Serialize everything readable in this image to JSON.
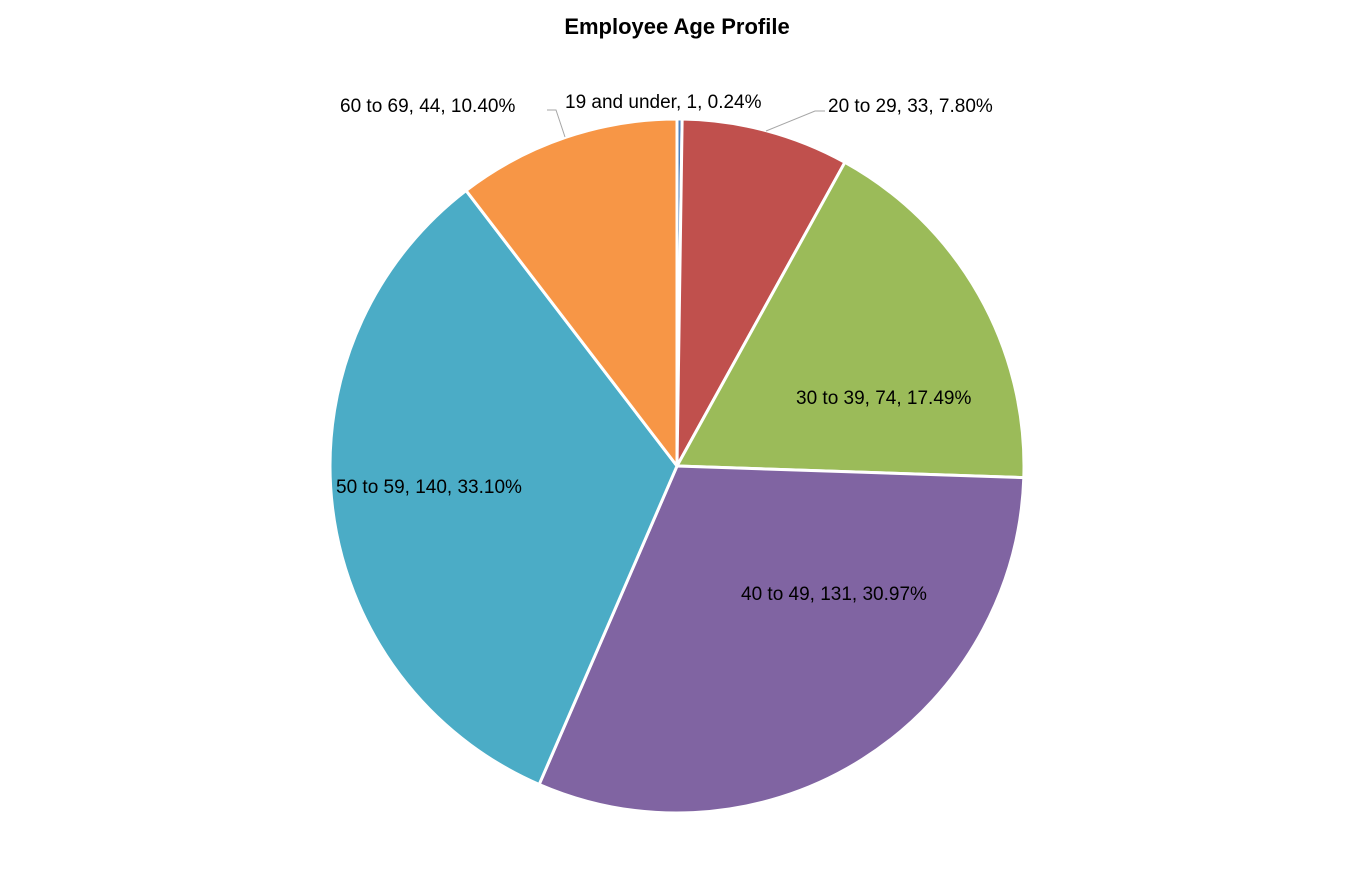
{
  "chart_data": {
    "type": "pie",
    "title": "Employee Age Profile",
    "categories": [
      "19 and under",
      "20 to 29",
      "30 to 39",
      "40 to 49",
      "50 to 59",
      "60 to 69"
    ],
    "values": [
      1,
      33,
      74,
      131,
      140,
      44
    ],
    "percentages": [
      0.24,
      7.8,
      17.49,
      30.97,
      33.1,
      10.4
    ],
    "colors": [
      "#4f81bd",
      "#c0504d",
      "#9bbb59",
      "#8064a2",
      "#4bacc6",
      "#f79646"
    ],
    "data_labels": [
      "19 and under, 1, 0.24%",
      "20 to 29, 33, 7.80%",
      "30 to 39, 74, 17.49%",
      "40 to 49, 131, 30.97%",
      "50 to 59, 140, 33.10%",
      "60 to 69, 44, 10.40%"
    ],
    "start_angle": "top, clockwise",
    "legend": "none"
  }
}
